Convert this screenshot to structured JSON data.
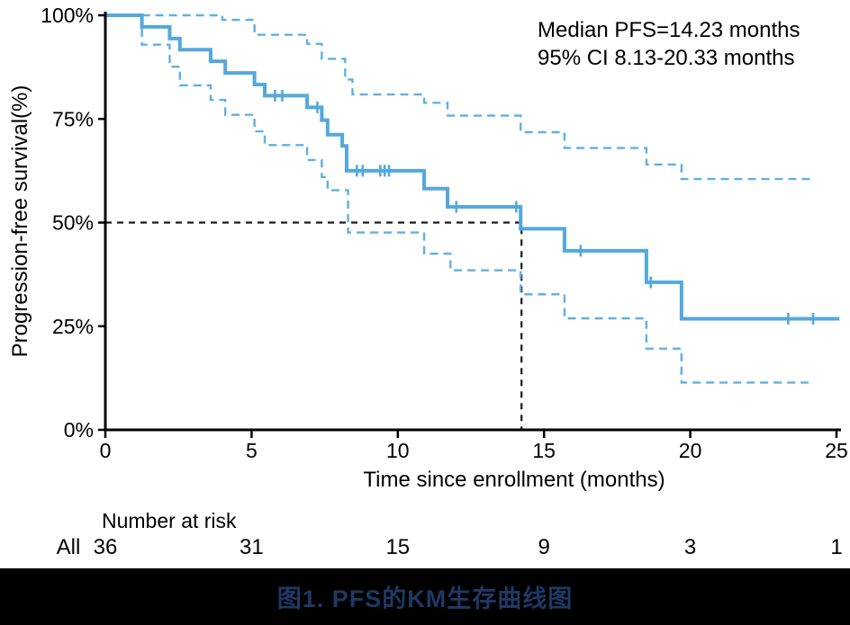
{
  "annotation": {
    "line1": "Median PFS=14.23 months",
    "line2": "95% CI 8.13-20.33 months"
  },
  "colors": {
    "curve": "#54A8DC",
    "ci": "#5FB0E2",
    "reference": "#1a1a1a",
    "axis": "#000000",
    "risk_group": "#2E9FD9",
    "caption_bg": "#000000",
    "caption_text": "#1F3864"
  },
  "chart_data": {
    "type": "line",
    "subtype": "kaplan-meier-step",
    "title": "",
    "xlabel": "Time since enrollment (months)",
    "ylabel": "Progression-free survival(%)",
    "xlim": [
      0,
      25.1
    ],
    "ylim": [
      0,
      100
    ],
    "grid": false,
    "xticks": [
      {
        "v": 0,
        "label": "0"
      },
      {
        "v": 5,
        "label": "5"
      },
      {
        "v": 10,
        "label": "10"
      },
      {
        "v": 15,
        "label": "15"
      },
      {
        "v": 20,
        "label": "20"
      },
      {
        "v": 25,
        "label": "25"
      }
    ],
    "yticks": [
      {
        "v": 0,
        "label": "0%"
      },
      {
        "v": 25,
        "label": "25%"
      },
      {
        "v": 50,
        "label": "50%"
      },
      {
        "v": 75,
        "label": "75%"
      },
      {
        "v": 100,
        "label": "100%"
      }
    ],
    "median_reference": {
      "x": 14.23,
      "y": 50
    },
    "series": [
      {
        "name": "KM estimate (All)",
        "style": "solid",
        "steps": [
          [
            0,
            100
          ],
          [
            1.25,
            97.2
          ],
          [
            2.2,
            94.4
          ],
          [
            2.55,
            91.7
          ],
          [
            3.6,
            88.9
          ],
          [
            4.1,
            86.1
          ],
          [
            5.1,
            83.3
          ],
          [
            5.45,
            80.6
          ],
          [
            6.9,
            77.8
          ],
          [
            7.4,
            74.7
          ],
          [
            7.6,
            71.2
          ],
          [
            8.1,
            68.5
          ],
          [
            8.25,
            62.5
          ],
          [
            10.9,
            58.2
          ],
          [
            11.7,
            53.8
          ],
          [
            14.2,
            48.5
          ],
          [
            15.7,
            43.2
          ],
          [
            18.5,
            35.6
          ],
          [
            19.7,
            26.8
          ]
        ],
        "end": 25.1
      },
      {
        "name": "95% CI upper",
        "style": "dashed",
        "steps": [
          [
            1.25,
            100
          ],
          [
            4.0,
            98.9
          ],
          [
            5.1,
            95.3
          ],
          [
            6.9,
            93.1
          ],
          [
            7.4,
            89.5
          ],
          [
            8.2,
            84.5
          ],
          [
            8.45,
            80.9
          ],
          [
            10.9,
            78.9
          ],
          [
            11.7,
            75.8
          ],
          [
            14.2,
            71.8
          ],
          [
            15.7,
            68.0
          ],
          [
            18.5,
            64.0
          ],
          [
            19.7,
            60.5
          ]
        ],
        "end": 24.2
      },
      {
        "name": "95% CI lower",
        "style": "dashed",
        "steps": [
          [
            1.25,
            100
          ],
          [
            1.25,
            92.9
          ],
          [
            2.2,
            87.6
          ],
          [
            2.55,
            83.1
          ],
          [
            3.6,
            79.6
          ],
          [
            4.1,
            76.0
          ],
          [
            5.1,
            72.0
          ],
          [
            5.45,
            68.7
          ],
          [
            6.9,
            65.1
          ],
          [
            7.4,
            61.0
          ],
          [
            7.6,
            57.8
          ],
          [
            8.3,
            47.6
          ],
          [
            10.9,
            42.5
          ],
          [
            11.8,
            38.5
          ],
          [
            14.2,
            32.7
          ],
          [
            15.7,
            26.9
          ],
          [
            18.5,
            19.6
          ],
          [
            19.7,
            11.4
          ]
        ],
        "end": 24.2
      }
    ],
    "censor_marks": [
      [
        5.8,
        80.6
      ],
      [
        6.05,
        80.6
      ],
      [
        7.25,
        77.8
      ],
      [
        8.6,
        62.5
      ],
      [
        8.8,
        62.5
      ],
      [
        9.4,
        62.5
      ],
      [
        9.55,
        62.5
      ],
      [
        9.7,
        62.5
      ],
      [
        12.0,
        53.8
      ],
      [
        14.05,
        53.8
      ],
      [
        16.25,
        43.2
      ],
      [
        18.65,
        35.6
      ],
      [
        23.35,
        26.8
      ],
      [
        24.2,
        26.8
      ]
    ]
  },
  "risk_table": {
    "header": "Number at risk",
    "group_label": "All",
    "times": [
      0,
      5,
      10,
      15,
      20,
      25
    ],
    "values": [
      "36",
      "31",
      "15",
      "9",
      "3",
      "1"
    ]
  },
  "caption": "图1. PFS的KM生存曲线图"
}
